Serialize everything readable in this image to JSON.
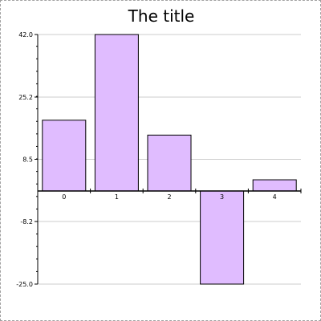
{
  "chart_data": {
    "type": "bar",
    "title": "The title",
    "xlabel": "",
    "ylabel": "",
    "categories": [
      "0",
      "1",
      "2",
      "3",
      "4"
    ],
    "values": [
      19.0,
      42.0,
      15.0,
      -25.0,
      3.0
    ],
    "ylim": [
      -25.0,
      42.0
    ],
    "yticks": [
      "42.0",
      "25.2",
      "8.5",
      "-8.2",
      "-25.0"
    ],
    "ytick_values": [
      42.0,
      25.2,
      8.5,
      -8.2,
      -25.0
    ],
    "grid": true,
    "legend": "none",
    "colors": {
      "bar_fill": "#e0bcff",
      "bar_stroke": "#000000",
      "grid": "#cccccc",
      "axis": "#000000",
      "frame": "#a0a0a0"
    }
  }
}
